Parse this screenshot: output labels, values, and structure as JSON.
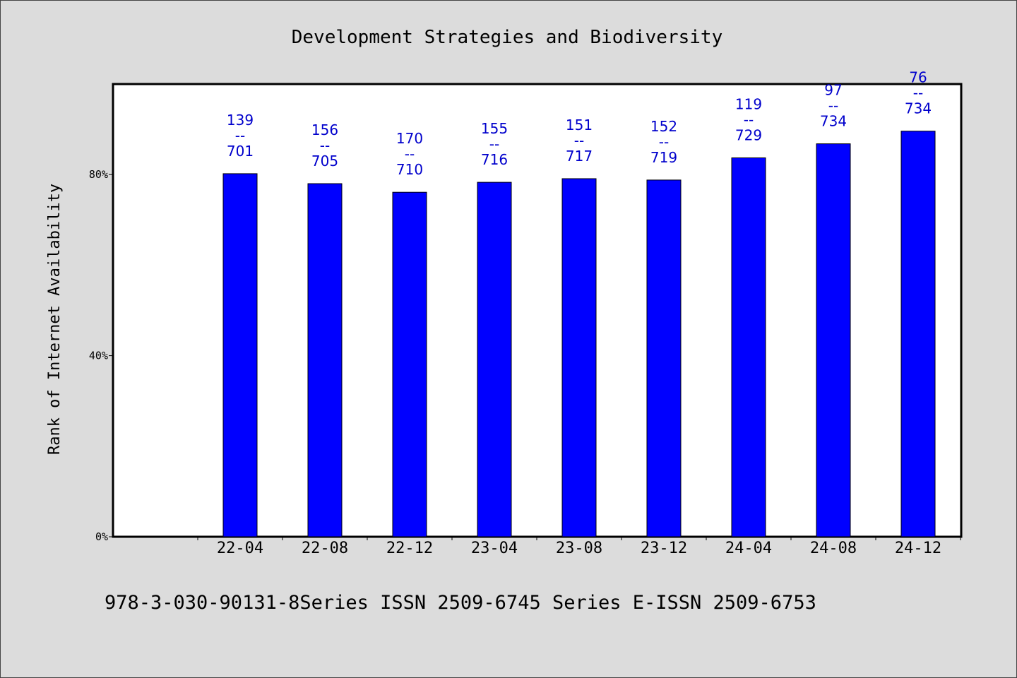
{
  "chart_data": {
    "type": "bar",
    "title": "Development Strategies and Biodiversity",
    "xlabel": "",
    "ylabel": "Rank of Internet Availability",
    "ylim": [
      0,
      100
    ],
    "yticks": [
      0,
      40,
      80
    ],
    "ytick_labels": [
      "0%",
      "40%",
      "80%"
    ],
    "grid": false,
    "bar_color": "#0000ff",
    "label_color": "#0000cc",
    "categories": [
      "22-04",
      "22-08",
      "22-12",
      "23-04",
      "23-08",
      "23-12",
      "24-04",
      "24-08",
      "24-12"
    ],
    "values": [
      80.2,
      78.0,
      76.1,
      78.3,
      79.1,
      78.8,
      83.7,
      86.8,
      89.6
    ],
    "data_labels": [
      {
        "rank": "139",
        "sep": "--",
        "total": "701"
      },
      {
        "rank": "156",
        "sep": "--",
        "total": "705"
      },
      {
        "rank": "170",
        "sep": "--",
        "total": "710"
      },
      {
        "rank": "155",
        "sep": "--",
        "total": "716"
      },
      {
        "rank": "151",
        "sep": "--",
        "total": "717"
      },
      {
        "rank": "152",
        "sep": "--",
        "total": "719"
      },
      {
        "rank": "119",
        "sep": "--",
        "total": "729"
      },
      {
        "rank": "97",
        "sep": "--",
        "total": "734"
      },
      {
        "rank": "76",
        "sep": "--",
        "total": "734"
      }
    ]
  },
  "footer": "978-3-030-90131-8Series ISSN 2509-6745 Series E-ISSN 2509-6753"
}
